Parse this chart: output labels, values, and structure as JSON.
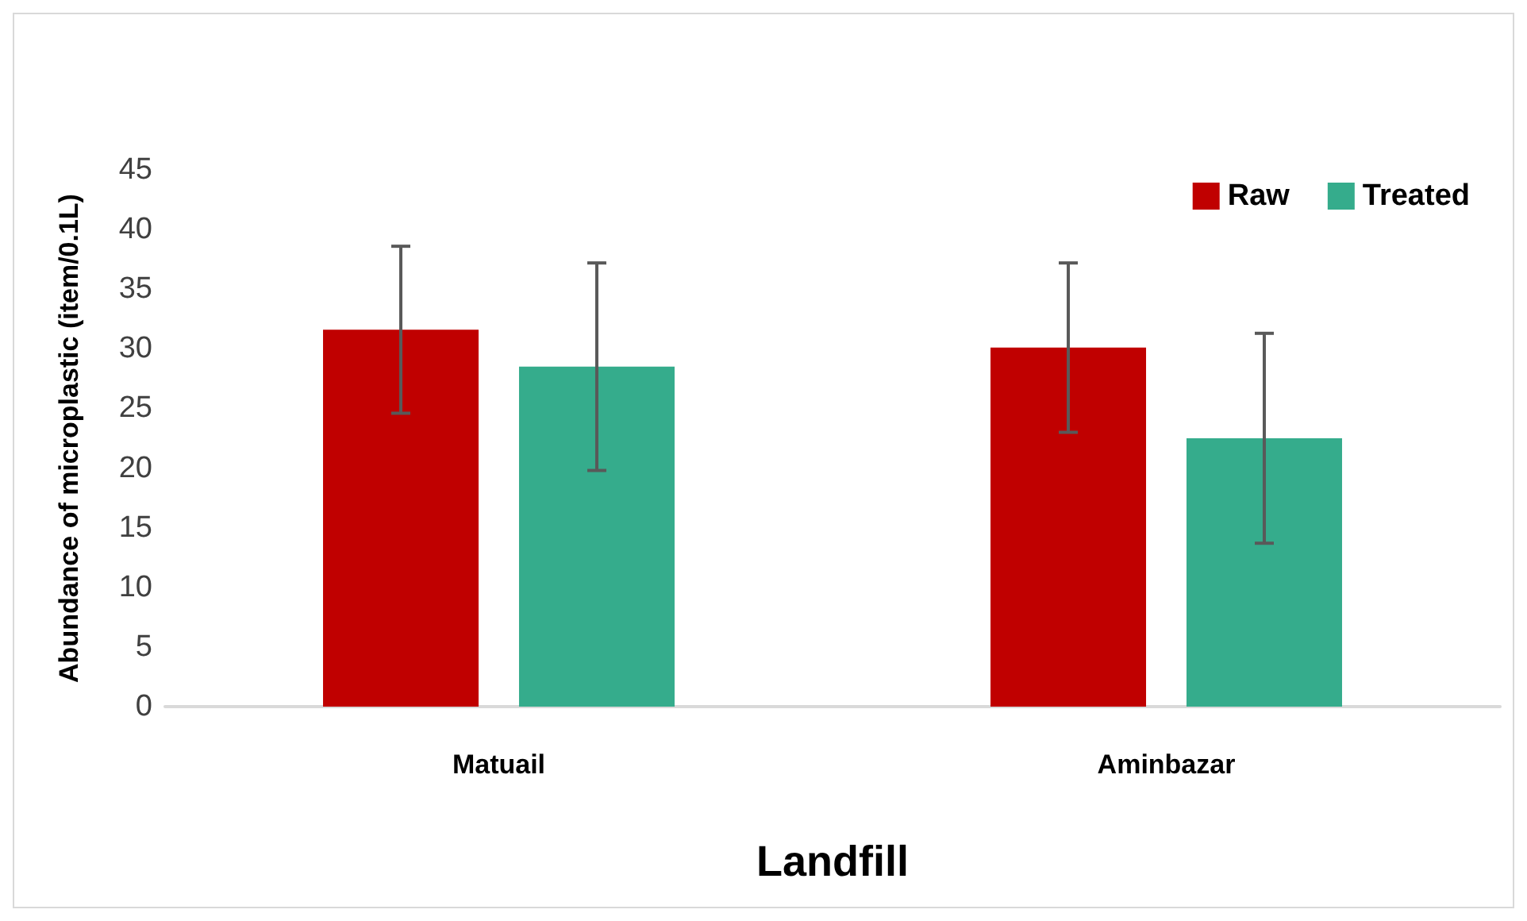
{
  "chart_data": {
    "type": "bar",
    "xlabel": "Landfill",
    "ylabel": "Abundance of microplastic (item/0.1L)",
    "categories": [
      "Matuail",
      "Aminbazar"
    ],
    "series": [
      {
        "name": "Raw",
        "color": "#c00000",
        "values": [
          31.6,
          30.1
        ],
        "errors": [
          7,
          7.1
        ]
      },
      {
        "name": "Treated",
        "color": "#35ac8c",
        "values": [
          28.5,
          22.5
        ],
        "errors": [
          8.7,
          8.8
        ]
      }
    ],
    "ylim": [
      0,
      45
    ],
    "yticks": [
      0,
      5,
      10,
      15,
      20,
      25,
      30,
      35,
      40,
      45
    ],
    "grid": false,
    "legend": "top right"
  }
}
